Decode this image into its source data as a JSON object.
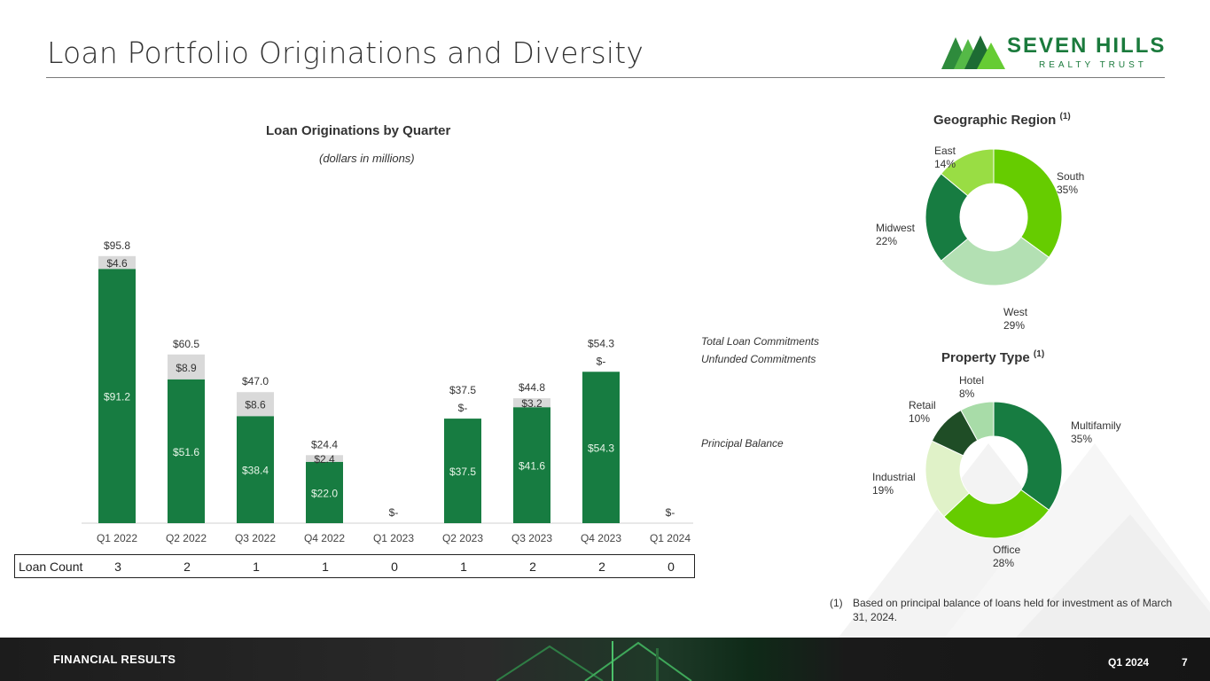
{
  "page": {
    "title": "Loan Portfolio Originations and Diversity",
    "logo": {
      "name": "SEVEN HILLS",
      "sub": "REALTY TRUST"
    },
    "footer": {
      "section": "FINANCIAL RESULTS",
      "period": "Q1 2024",
      "page_number": "7"
    },
    "footnote": {
      "number": "(1)",
      "text": "Based on principal balance of loans held for investment as of March 31, 2024."
    },
    "colors": {
      "principal": "#177c41",
      "unfunded": "#d9d9d9",
      "logo_green": "#1a7a3c"
    }
  },
  "chart_data": [
    {
      "type": "bar",
      "stacked": true,
      "title": "Loan Originations by Quarter",
      "subtitle": "(dollars in millions)",
      "categories": [
        "Q1 2022",
        "Q2 2022",
        "Q3 2022",
        "Q4 2022",
        "Q1 2023",
        "Q2 2023",
        "Q3 2023",
        "Q4 2023",
        "Q1 2024"
      ],
      "series": [
        {
          "name": "Principal Balance",
          "values": [
            91.2,
            51.6,
            38.4,
            22.0,
            0,
            37.5,
            41.6,
            54.3,
            0
          ],
          "labels": [
            "$91.2",
            "$51.6",
            "$38.4",
            "$22.0",
            "",
            "$37.5",
            "$41.6",
            "$54.3",
            ""
          ]
        },
        {
          "name": "Unfunded Commitments",
          "values": [
            4.6,
            8.9,
            8.6,
            2.4,
            0,
            0,
            3.2,
            0,
            0
          ],
          "labels": [
            "$4.6",
            "$8.9",
            "$8.6",
            "$2.4",
            "",
            "$-",
            "$3.2",
            "$-",
            ""
          ]
        }
      ],
      "totals": [
        95.8,
        60.5,
        47.0,
        24.4,
        0,
        37.5,
        44.8,
        54.3,
        0
      ],
      "total_labels": [
        "$95.8",
        "$60.5",
        "$47.0",
        "$24.4",
        "$-",
        "$37.5",
        "$44.8",
        "$54.3",
        "$-"
      ],
      "legend": {
        "total": "Total Loan Commitments",
        "unfunded": "Unfunded Commitments",
        "principal": "Principal Balance"
      },
      "ylim": [
        0,
        100
      ],
      "loan_count_label": "Loan Count",
      "loan_counts": [
        "3",
        "2",
        "1",
        "1",
        "0",
        "1",
        "2",
        "2",
        "0"
      ]
    },
    {
      "type": "pie",
      "donut": true,
      "title": "Geographic Region",
      "title_note": "(1)",
      "slices": [
        {
          "label": "South",
          "pct_label": "35%",
          "value": 35,
          "color": "#66cc00"
        },
        {
          "label": "West",
          "pct_label": "29%",
          "value": 29,
          "color": "#b3e0b3"
        },
        {
          "label": "Midwest",
          "pct_label": "22%",
          "value": 22,
          "color": "#177c41"
        },
        {
          "label": "East",
          "pct_label": "14%",
          "value": 14,
          "color": "#99dd44"
        }
      ]
    },
    {
      "type": "pie",
      "donut": true,
      "title": "Property Type",
      "title_note": "(1)",
      "slices": [
        {
          "label": "Multifamily",
          "pct_label": "35%",
          "value": 35,
          "color": "#177c41"
        },
        {
          "label": "Office",
          "pct_label": "28%",
          "value": 28,
          "color": "#66cc00"
        },
        {
          "label": "Industrial",
          "pct_label": "19%",
          "value": 19,
          "color": "#e0f2c8"
        },
        {
          "label": "Retail",
          "pct_label": "10%",
          "value": 10,
          "color": "#1f4d26"
        },
        {
          "label": "Hotel",
          "pct_label": "8%",
          "value": 8,
          "color": "#a8dca8"
        }
      ]
    }
  ]
}
